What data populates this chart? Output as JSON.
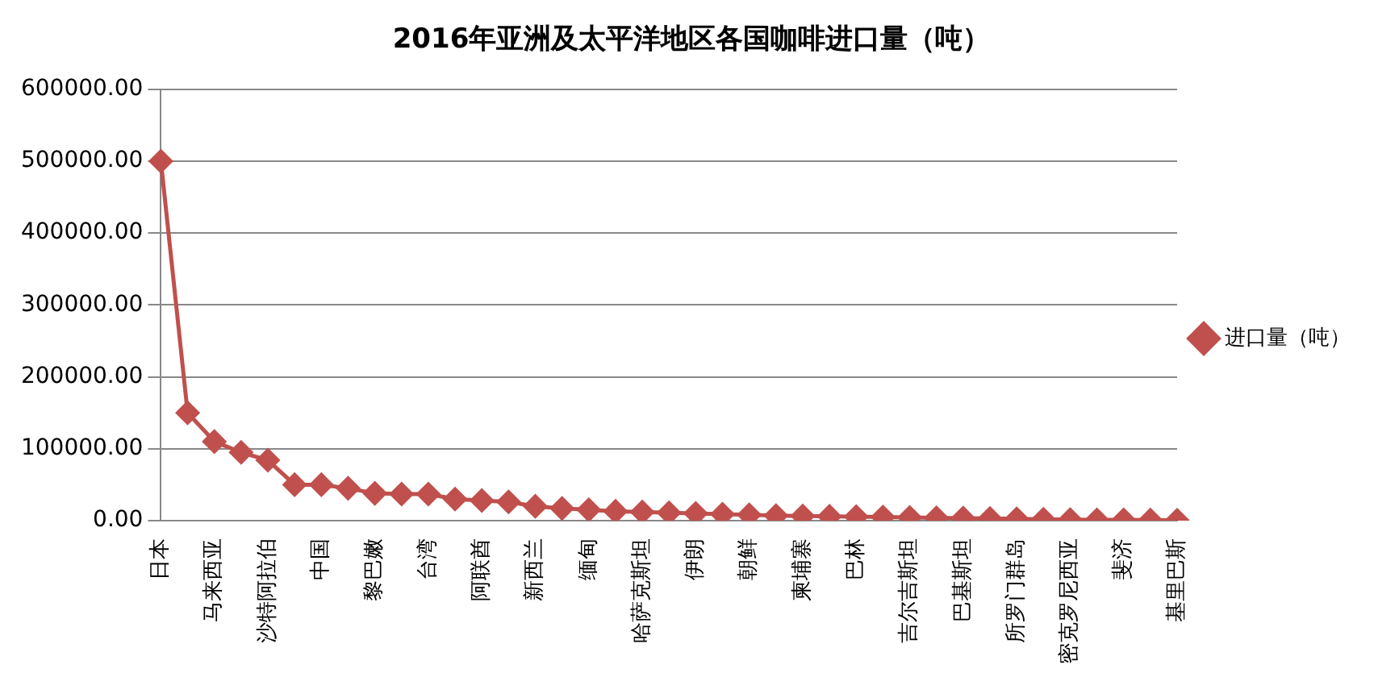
{
  "chart_data": {
    "type": "line",
    "title": "2016年亚洲及太平洋地区各国咖啡进口量（吨）",
    "categories": [
      "日本",
      null,
      "马来西亚",
      null,
      "沙特阿拉伯",
      null,
      "中国",
      null,
      "黎巴嫩",
      null,
      "台湾",
      null,
      "阿联酋",
      null,
      "新西兰",
      null,
      "缅甸",
      null,
      "哈萨克斯坦",
      null,
      "伊朗",
      null,
      "朝鲜",
      null,
      "柬埔寨",
      null,
      "巴林",
      null,
      "吉尔吉斯坦",
      null,
      "巴基斯坦",
      null,
      "所罗门群岛",
      null,
      "密克罗尼西亚",
      null,
      "斐济",
      null,
      "基里巴斯"
    ],
    "series": [
      {
        "name": "进口量（吨）",
        "color": "#c0504d",
        "values": [
          500000,
          150000,
          110000,
          95000,
          84000,
          50000,
          50000,
          45000,
          38000,
          37000,
          37000,
          30000,
          28000,
          26000,
          20000,
          17000,
          15000,
          13000,
          12000,
          11000,
          10000,
          9000,
          8000,
          7000,
          6500,
          6000,
          5500,
          5000,
          4500,
          4000,
          3500,
          3000,
          2500,
          2000,
          1500,
          1200,
          1000,
          800,
          500
        ]
      }
    ],
    "ylim": [
      0,
      600000
    ],
    "yticks": [
      {
        "value": 0,
        "label": "0.00"
      },
      {
        "value": 100000,
        "label": "100000.00"
      },
      {
        "value": 200000,
        "label": "200000.00"
      },
      {
        "value": 300000,
        "label": "300000.00"
      },
      {
        "value": 400000,
        "label": "400000.00"
      },
      {
        "value": 500000,
        "label": "500000.00"
      },
      {
        "value": 600000,
        "label": "600000.00"
      }
    ],
    "grid": "y",
    "legend": "right",
    "marker": "diamond",
    "line_style": "solid"
  }
}
